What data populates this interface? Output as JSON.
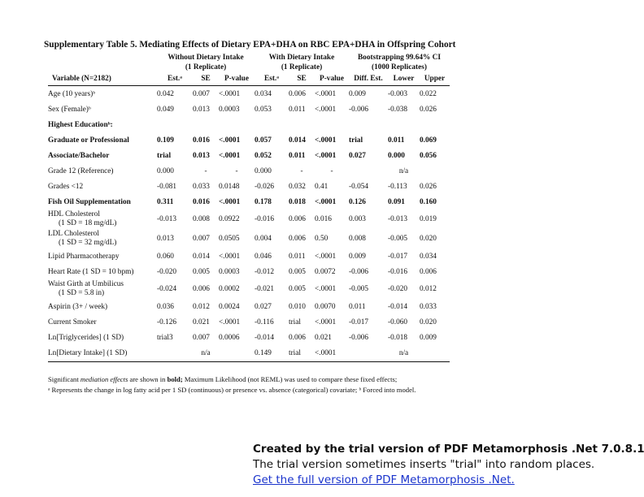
{
  "title": "Supplementary Table 5. Mediating Effects of Dietary EPA+DHA on RBC EPA+DHA in Offspring Cohort",
  "groups": {
    "without": [
      "Without Dietary Intake",
      "(1 Replicate)"
    ],
    "with": [
      "With Dietary Intake",
      "(1 Replicate)"
    ],
    "boot": [
      "Bootstrapping 99.64% CI",
      "(1000 Replicates)"
    ]
  },
  "columns": [
    "Variable (N=2182)",
    "Est.ᵃ",
    "SE",
    "P-value",
    "Est.ᵃ",
    "SE",
    "P-value",
    "Diff. Est.",
    "Lower",
    "Upper"
  ],
  "rows": [
    {
      "label": "Age (10 years)ᵇ",
      "cells": [
        "0.042",
        "0.007",
        "<.0001",
        "0.034",
        "0.006",
        "<.0001",
        "0.009",
        "-0.003",
        "0.022"
      ]
    },
    {
      "label": "Sex (Female)ᵇ",
      "cells": [
        "0.049",
        "0.013",
        "0.0003",
        "0.053",
        "0.011",
        "<.0001",
        "-0.006",
        "-0.038",
        "0.026"
      ]
    },
    {
      "label": "Highest Educationᵇ:"
    },
    {
      "label": "Graduate or Professional",
      "cells": [
        "0.109",
        "0.016",
        "<.0001",
        "0.057",
        "0.014",
        "<.0001",
        "trial",
        "0.011",
        "0.069"
      ]
    },
    {
      "label": "Associate/Bachelor",
      "cells": [
        "trial",
        "0.013",
        "<.0001",
        "0.052",
        "0.011",
        "<.0001",
        "0.027",
        "0.000",
        "0.056"
      ]
    },
    {
      "label": "Grade 12 (Reference)",
      "cells": [
        "0.000",
        "-",
        "-",
        "0.000",
        "-",
        "-",
        "",
        "n/a",
        ""
      ]
    },
    {
      "label": "Grades <12",
      "cells": [
        "-0.081",
        "0.033",
        "0.0148",
        "-0.026",
        "0.032",
        "0.41",
        "-0.054",
        "-0.113",
        "0.026"
      ]
    },
    {
      "label": "Fish Oil Supplementation",
      "cells": [
        "0.311",
        "0.016",
        "<.0001",
        "0.178",
        "0.018",
        "<.0001",
        "0.126",
        "0.091",
        "0.160"
      ]
    },
    {
      "label": "HDL Cholesterol",
      "label2": "(1 SD = 18 mg/dL)",
      "cells": [
        "-0.013",
        "0.008",
        "0.0922",
        "-0.016",
        "0.006",
        "0.016",
        "0.003",
        "-0.013",
        "0.019"
      ]
    },
    {
      "label": "LDL Cholesterol",
      "label2": "(1 SD = 32 mg/dL)",
      "cells": [
        "0.013",
        "0.007",
        "0.0505",
        "0.004",
        "0.006",
        "0.50",
        "0.008",
        "-0.005",
        "0.020"
      ]
    },
    {
      "label": "Lipid Pharmacotherapy",
      "cells": [
        "0.060",
        "0.014",
        "<.0001",
        "0.046",
        "0.011",
        "<.0001",
        "0.009",
        "-0.017",
        "0.034"
      ]
    },
    {
      "label": "Heart Rate (1 SD = 10 bpm)",
      "cells": [
        "-0.020",
        "0.005",
        "0.0003",
        "-0.012",
        "0.005",
        "0.0072",
        "-0.006",
        "-0.016",
        "0.006"
      ]
    },
    {
      "label": "Waist Girth at Umbilicus",
      "label2": "(1 SD = 5.8 in)",
      "cells": [
        "-0.024",
        "0.006",
        "0.0002",
        "-0.021",
        "0.005",
        "<.0001",
        "-0.005",
        "-0.020",
        "0.012"
      ]
    },
    {
      "label": "Aspirin (3+ / week)",
      "cells": [
        "0.036",
        "0.012",
        "0.0024",
        "0.027",
        "0.010",
        "0.0070",
        "0.011",
        "-0.014",
        "0.033"
      ]
    },
    {
      "label": "Current Smoker",
      "cells": [
        "-0.126",
        "0.021",
        "<.0001",
        "-0.116",
        "trial",
        "<.0001",
        "-0.017",
        "-0.060",
        "0.020"
      ]
    },
    {
      "label": "Ln[Triglycerides] (1 SD)",
      "cells": [
        "trial3",
        "0.007",
        "0.0006",
        "-0.014",
        "0.006",
        "0.021",
        "-0.006",
        "-0.018",
        "0.009"
      ]
    },
    {
      "label": "Ln[Dietary Intake] (1 SD)",
      "cells": [
        "",
        "n/a",
        "",
        "0.149",
        "trial",
        "<.0001",
        "",
        "n/a",
        ""
      ]
    }
  ],
  "notes": {
    "line1_pre": "Significant ",
    "line1_em": "mediation effects",
    "line1_mid": " are shown in ",
    "line1_bold": "bold;",
    "line1_post": " Maximum Likelihood (not REML) was used to compare these fixed effects;",
    "line2": "ᵃ Represents the change in log fatty acid per 1 SD (continuous) or presence vs. absence (categorical) covariate; ᵇ Forced into model."
  },
  "watermark": {
    "line1": "Created by the trial version of PDF Metamorphosis .Net 7.0.8.10!",
    "line2": "The trial version sometimes inserts \"trial\" into random places.",
    "link": "Get the full version of PDF Metamorphosis .Net."
  }
}
